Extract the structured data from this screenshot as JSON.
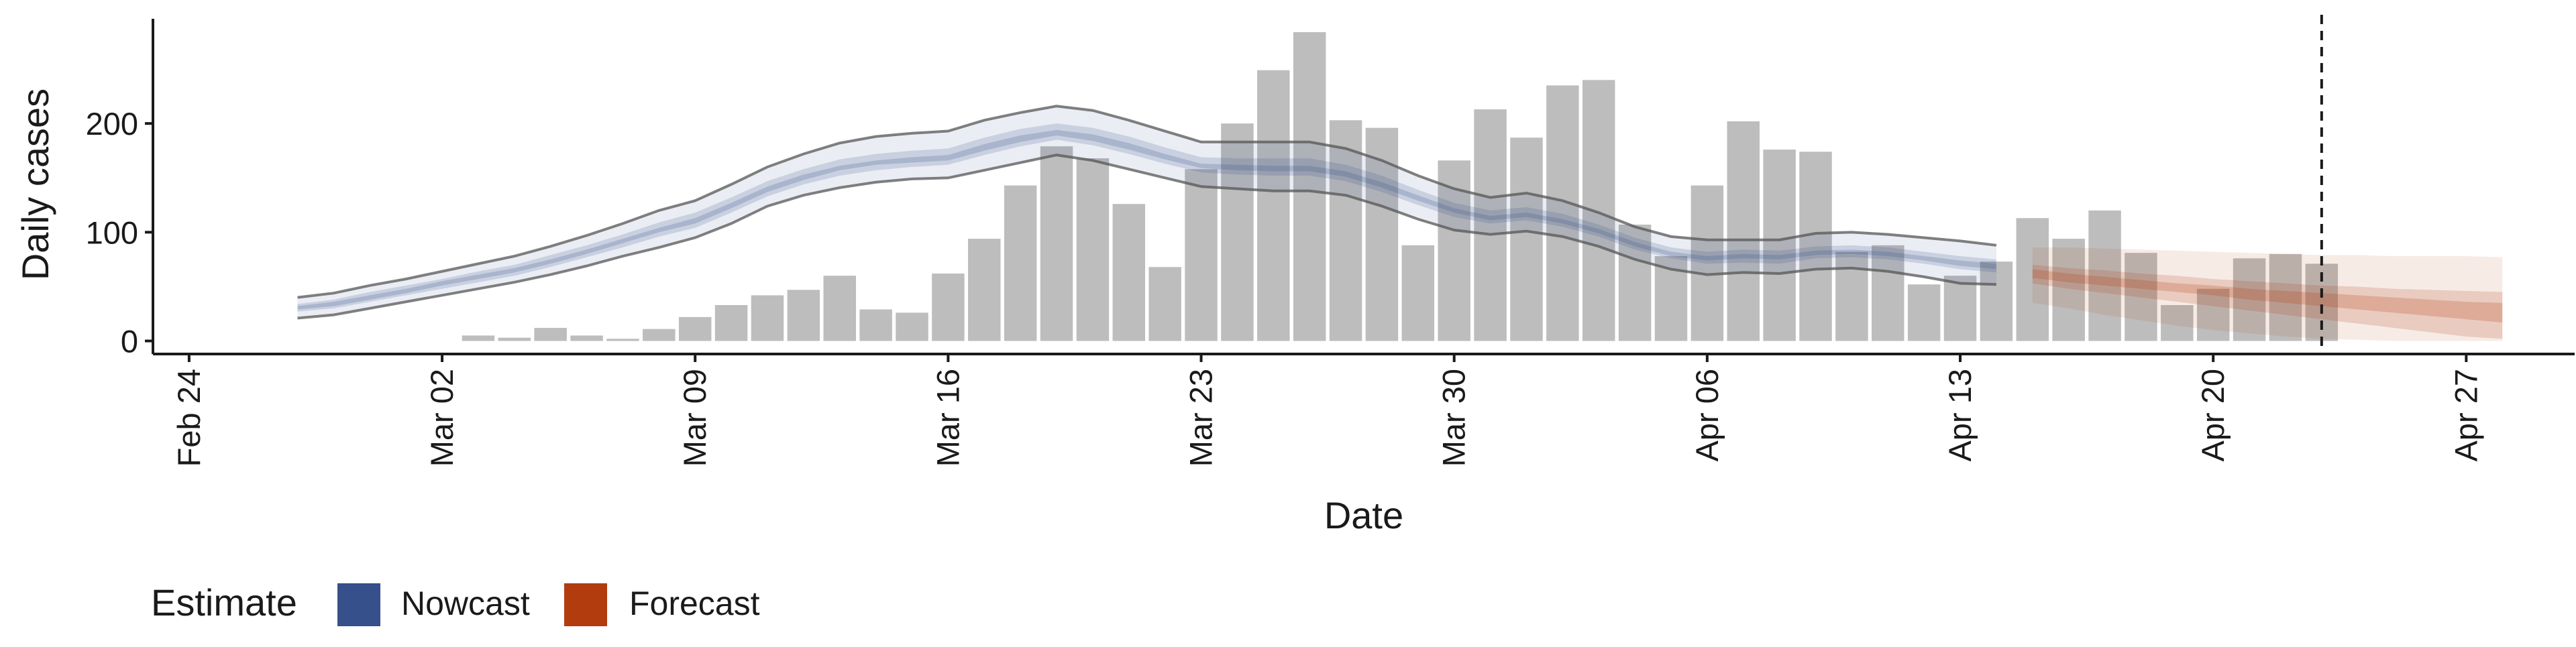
{
  "chart_data": {
    "type": "bar",
    "xlabel": "Date",
    "ylabel": "Daily cases",
    "x_axis": {
      "type": "date",
      "range": [
        "2020-02-23",
        "2020-04-30"
      ],
      "ticks": [
        "2020-02-24",
        "2020-03-02",
        "2020-03-09",
        "2020-03-16",
        "2020-03-23",
        "2020-03-30",
        "2020-04-06",
        "2020-04-13",
        "2020-04-20",
        "2020-04-27"
      ],
      "tick_labels": [
        "Feb 24",
        "Mar 02",
        "Mar 09",
        "Mar 16",
        "Mar 23",
        "Mar 30",
        "Apr 06",
        "Apr 13",
        "Apr 20",
        "Apr 27"
      ]
    },
    "y_axis": {
      "range": [
        -12,
        300
      ],
      "ticks": [
        0,
        100,
        200
      ],
      "tick_labels": [
        "0",
        "100",
        "200"
      ]
    },
    "grid": false,
    "vline": {
      "date": "2020-04-23",
      "style": "dashed"
    },
    "bars": {
      "color": "#bdbdbd",
      "dates": [
        "2020-03-03",
        "2020-03-04",
        "2020-03-05",
        "2020-03-06",
        "2020-03-07",
        "2020-03-08",
        "2020-03-09",
        "2020-03-10",
        "2020-03-11",
        "2020-03-12",
        "2020-03-13",
        "2020-03-14",
        "2020-03-15",
        "2020-03-16",
        "2020-03-17",
        "2020-03-18",
        "2020-03-19",
        "2020-03-20",
        "2020-03-21",
        "2020-03-22",
        "2020-03-23",
        "2020-03-24",
        "2020-03-25",
        "2020-03-26",
        "2020-03-27",
        "2020-03-28",
        "2020-03-29",
        "2020-03-30",
        "2020-03-31",
        "2020-04-01",
        "2020-04-02",
        "2020-04-03",
        "2020-04-04",
        "2020-04-05",
        "2020-04-06",
        "2020-04-07",
        "2020-04-08",
        "2020-04-09",
        "2020-04-10",
        "2020-04-11",
        "2020-04-12",
        "2020-04-13",
        "2020-04-14",
        "2020-04-15",
        "2020-04-16",
        "2020-04-17",
        "2020-04-18",
        "2020-04-19",
        "2020-04-20",
        "2020-04-21",
        "2020-04-22",
        "2020-04-23"
      ],
      "values": [
        5,
        3,
        12,
        5,
        2,
        11,
        22,
        33,
        42,
        47,
        60,
        29,
        26,
        62,
        94,
        143,
        179,
        168,
        126,
        68,
        158,
        200,
        249,
        284,
        203,
        196,
        88,
        166,
        213,
        187,
        235,
        240,
        107,
        78,
        143,
        202,
        176,
        174,
        82,
        88,
        52,
        60,
        73,
        113,
        94,
        120,
        81,
        33,
        48,
        76,
        80,
        71
      ]
    },
    "series": [
      {
        "name": "Nowcast",
        "color": "#35508a",
        "dates": [
          "2020-02-27",
          "2020-02-28",
          "2020-02-29",
          "2020-03-01",
          "2020-03-02",
          "2020-03-03",
          "2020-03-04",
          "2020-03-05",
          "2020-03-06",
          "2020-03-07",
          "2020-03-08",
          "2020-03-09",
          "2020-03-10",
          "2020-03-11",
          "2020-03-12",
          "2020-03-13",
          "2020-03-14",
          "2020-03-15",
          "2020-03-16",
          "2020-03-17",
          "2020-03-18",
          "2020-03-19",
          "2020-03-20",
          "2020-03-21",
          "2020-03-22",
          "2020-03-23",
          "2020-03-24",
          "2020-03-25",
          "2020-03-26",
          "2020-03-27",
          "2020-03-28",
          "2020-03-29",
          "2020-03-30",
          "2020-03-31",
          "2020-04-01",
          "2020-04-02",
          "2020-04-03",
          "2020-04-04",
          "2020-04-05",
          "2020-04-06",
          "2020-04-07",
          "2020-04-08",
          "2020-04-09",
          "2020-04-10",
          "2020-04-11",
          "2020-04-12",
          "2020-04-13",
          "2020-04-14"
        ],
        "outer_upper": [
          40,
          44,
          51,
          57,
          64,
          71,
          78,
          87,
          97,
          108,
          120,
          129,
          144,
          160,
          172,
          182,
          188,
          191,
          193,
          203,
          210,
          216,
          212,
          203,
          193,
          183,
          183,
          183,
          183,
          177,
          166,
          152,
          140,
          132,
          136,
          129,
          118,
          105,
          96,
          93,
          93,
          93,
          99,
          100,
          98,
          95,
          92,
          88
        ],
        "outer_lower": [
          21,
          24,
          30,
          36,
          42,
          48,
          54,
          61,
          69,
          78,
          86,
          95,
          108,
          124,
          134,
          141,
          146,
          149,
          150,
          157,
          164,
          171,
          166,
          158,
          150,
          142,
          140,
          138,
          138,
          134,
          124,
          112,
          102,
          98,
          101,
          96,
          87,
          75,
          66,
          61,
          63,
          62,
          66,
          67,
          64,
          59,
          53,
          52
        ],
        "mid_upper": [
          34,
          38,
          45,
          51,
          57,
          64,
          70,
          79,
          88,
          98,
          109,
          118,
          132,
          147,
          158,
          167,
          172,
          175,
          177,
          187,
          195,
          200,
          196,
          188,
          178,
          169,
          168,
          168,
          168,
          162,
          152,
          139,
          127,
          120,
          123,
          117,
          107,
          95,
          86,
          82,
          84,
          83,
          87,
          88,
          86,
          82,
          78,
          75
        ],
        "mid_lower": [
          27,
          30,
          36,
          42,
          48,
          54,
          60,
          68,
          77,
          86,
          96,
          104,
          118,
          133,
          144,
          152,
          157,
          160,
          162,
          171,
          179,
          185,
          180,
          172,
          163,
          155,
          153,
          152,
          152,
          147,
          137,
          125,
          114,
          108,
          111,
          105,
          96,
          84,
          76,
          71,
          72,
          71,
          76,
          77,
          75,
          71,
          66,
          63
        ],
        "inner_upper": [
          32,
          36,
          42,
          48,
          55,
          61,
          67,
          75,
          84,
          94,
          104,
          113,
          127,
          142,
          153,
          161,
          166,
          169,
          171,
          181,
          189,
          194,
          190,
          182,
          172,
          163,
          162,
          161,
          161,
          156,
          146,
          134,
          122,
          115,
          118,
          112,
          103,
          91,
          82,
          78,
          80,
          79,
          83,
          84,
          82,
          78,
          74,
          71
        ],
        "inner_lower": [
          29,
          32,
          38,
          44,
          51,
          57,
          63,
          71,
          80,
          90,
          100,
          108,
          122,
          137,
          148,
          157,
          162,
          164,
          166,
          175,
          183,
          189,
          184,
          176,
          167,
          159,
          157,
          156,
          156,
          151,
          141,
          129,
          118,
          111,
          114,
          108,
          99,
          87,
          78,
          74,
          76,
          75,
          79,
          80,
          78,
          74,
          69,
          66
        ]
      },
      {
        "name": "Forecast",
        "color": "#b23c0e",
        "dates": [
          "2020-04-15",
          "2020-04-16",
          "2020-04-17",
          "2020-04-18",
          "2020-04-19",
          "2020-04-20",
          "2020-04-21",
          "2020-04-22",
          "2020-04-23",
          "2020-04-24",
          "2020-04-25",
          "2020-04-26",
          "2020-04-27",
          "2020-04-28"
        ],
        "outer_upper": [
          86,
          86,
          85,
          84,
          83,
          82,
          81,
          80,
          79,
          79,
          78,
          78,
          78,
          77
        ],
        "outer_lower": [
          35,
          30,
          24,
          19,
          14,
          10,
          7,
          4,
          2,
          1,
          0,
          0,
          0,
          0
        ],
        "mid_upper": [
          70,
          67,
          65,
          62,
          60,
          57,
          55,
          53,
          51,
          50,
          48,
          47,
          46,
          45
        ],
        "mid_lower": [
          53,
          48,
          44,
          40,
          36,
          32,
          28,
          24,
          20,
          16,
          12,
          8,
          4,
          2
        ],
        "inner_upper": [
          66,
          62,
          59,
          56,
          53,
          51,
          48,
          46,
          44,
          42,
          40,
          38,
          36,
          35
        ],
        "inner_lower": [
          58,
          54,
          51,
          48,
          45,
          42,
          38,
          35,
          32,
          29,
          26,
          23,
          20,
          17
        ]
      }
    ],
    "legend": {
      "position": "bottom-left",
      "title": "Estimate",
      "items": [
        {
          "label": "Nowcast",
          "color": "#35508a"
        },
        {
          "label": "Forecast",
          "color": "#b23c0e"
        }
      ]
    }
  }
}
